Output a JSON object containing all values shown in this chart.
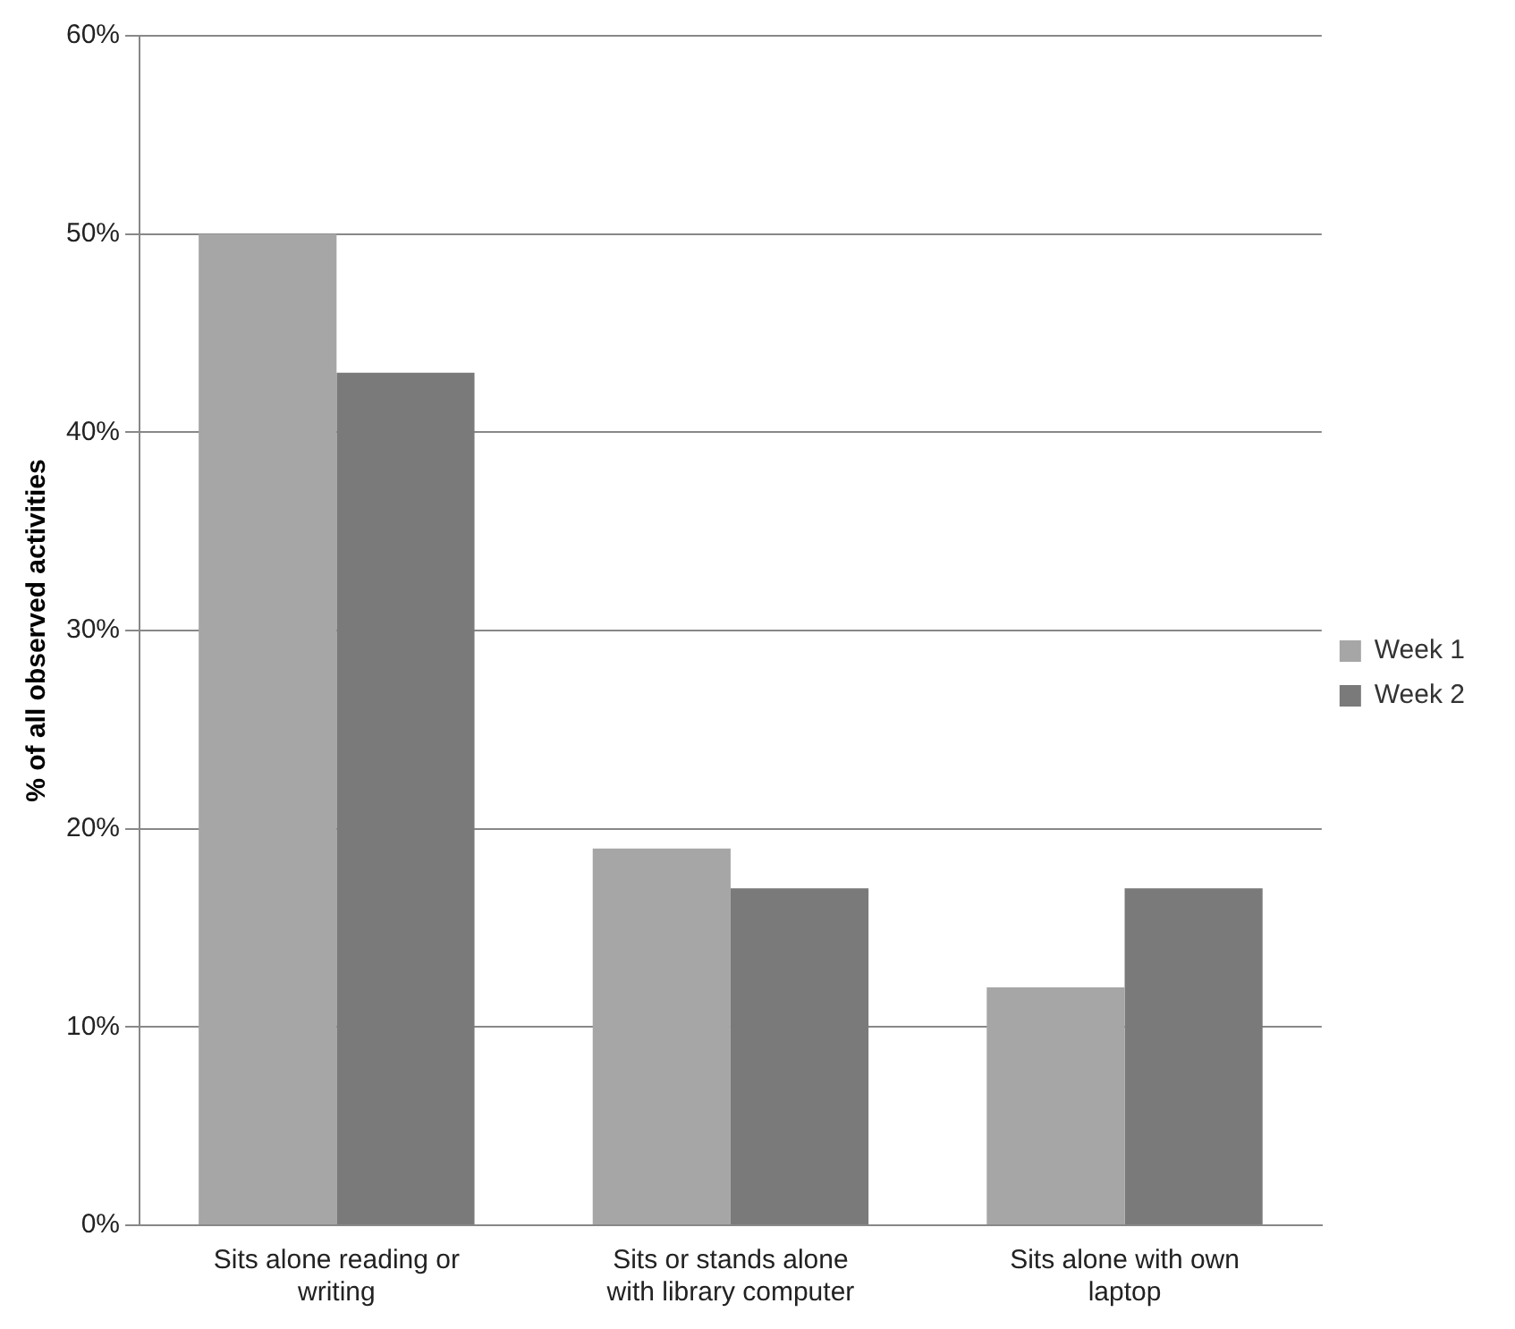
{
  "chart_data": {
    "type": "bar",
    "ylabel": "% of all observed activities",
    "categories": [
      "Sits alone reading or writing",
      "Sits or stands alone with library computer",
      "Sits alone with own laptop"
    ],
    "series": [
      {
        "name": "Week 1",
        "color": "#a6a6a6",
        "values": [
          50,
          19,
          12
        ]
      },
      {
        "name": "Week 2",
        "color": "#7a7a7a",
        "values": [
          43,
          17,
          17
        ]
      }
    ],
    "ylim": [
      0,
      60
    ],
    "yticks": [
      {
        "value": 0,
        "label": "0%"
      },
      {
        "value": 10,
        "label": "10%"
      },
      {
        "value": 20,
        "label": "20%"
      },
      {
        "value": 30,
        "label": "30%"
      },
      {
        "value": 40,
        "label": "40%"
      },
      {
        "value": 50,
        "label": "50%"
      },
      {
        "value": 60,
        "label": "60%"
      }
    ],
    "grid": "y",
    "legend": "right"
  }
}
